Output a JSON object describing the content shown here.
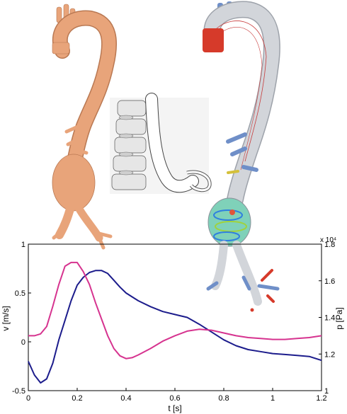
{
  "panels": {
    "left": "aorta-geometry-model",
    "center": "spine-and-aorta-scan",
    "right": "aorta-flow-simulation"
  },
  "colors": {
    "aorta_skin": "#e8a47a",
    "aorta_sim": "#d2d5da",
    "velocity_line": "#1c1c8c",
    "pressure_line": "#d6338f"
  },
  "chart_data": {
    "type": "line",
    "x": [
      0,
      0.025,
      0.05,
      0.075,
      0.1,
      0.125,
      0.15,
      0.175,
      0.2,
      0.225,
      0.25,
      0.275,
      0.3,
      0.325,
      0.35,
      0.375,
      0.4,
      0.425,
      0.45,
      0.5,
      0.55,
      0.6,
      0.65,
      0.7,
      0.75,
      0.8,
      0.85,
      0.9,
      0.95,
      1.0,
      1.05,
      1.1,
      1.15,
      1.2
    ],
    "xlabel": "t [s]",
    "xlim": [
      0,
      1.2
    ],
    "xticks": [
      "0",
      "0.2",
      "0.4",
      "0.6",
      "0.8",
      "1",
      "1.2"
    ],
    "series": [
      {
        "axis": "left",
        "color": "#1c1c8c",
        "values": [
          -0.2,
          -0.34,
          -0.42,
          -0.38,
          -0.22,
          0.02,
          0.22,
          0.42,
          0.58,
          0.66,
          0.71,
          0.73,
          0.73,
          0.7,
          0.63,
          0.56,
          0.5,
          0.46,
          0.42,
          0.36,
          0.31,
          0.28,
          0.25,
          0.18,
          0.1,
          0.02,
          -0.04,
          -0.08,
          -0.1,
          -0.12,
          -0.13,
          -0.14,
          -0.15,
          -0.19
        ]
      },
      {
        "axis": "right",
        "color": "#d6338f",
        "values": [
          13000,
          13000,
          13100,
          13500,
          14600,
          15800,
          16800,
          17000,
          17000,
          16500,
          15800,
          14800,
          13900,
          13000,
          12300,
          11900,
          11750,
          11800,
          11950,
          12300,
          12700,
          13000,
          13250,
          13350,
          13300,
          13150,
          13000,
          12900,
          12850,
          12800,
          12800,
          12850,
          12900,
          13000
        ]
      }
    ],
    "y_left": {
      "label": "v [m/s]",
      "lim": [
        -0.5,
        1
      ],
      "ticks": [
        "-0.5",
        "0",
        "0.5",
        "1"
      ]
    },
    "y_right": {
      "label": "p [Pa]",
      "lim": [
        10000,
        18000
      ],
      "ticks": [
        "1",
        "1.2",
        "1.4",
        "1.6",
        "1.8"
      ],
      "multiplier": "x 10⁴"
    }
  }
}
